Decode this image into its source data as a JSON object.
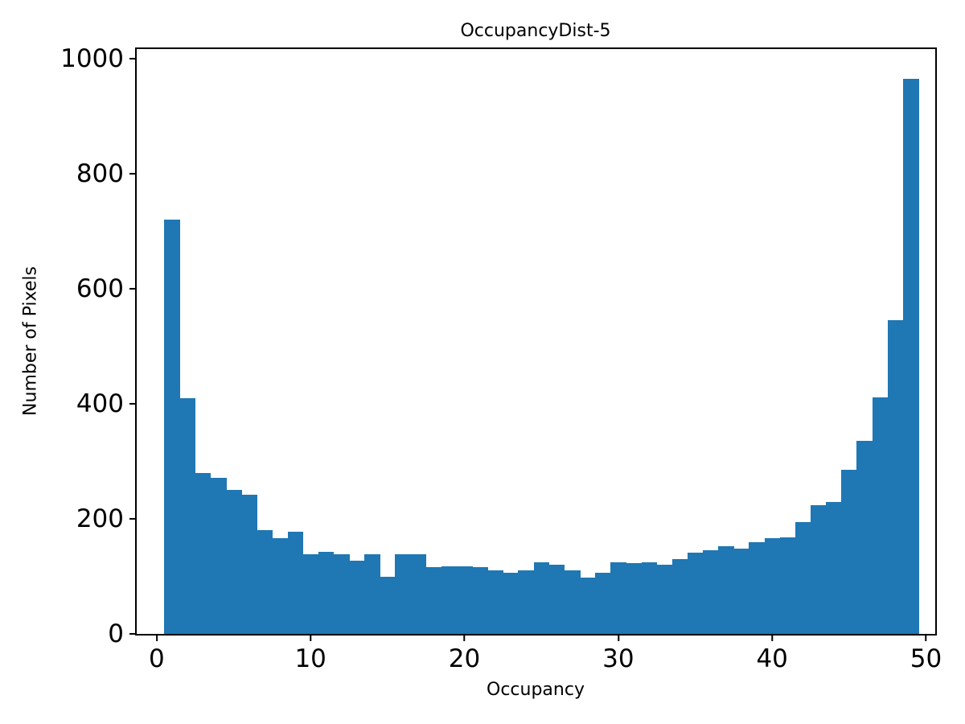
{
  "figure": {
    "background": "#ffffff",
    "bar_color": "#1f77b4",
    "axis_color": "#000000"
  },
  "chart_data": {
    "type": "bar",
    "subtype": "histogram",
    "title": "OccupancyDist-5",
    "xlabel": "Occupancy",
    "ylabel": "Number of Pixels",
    "xlim": [
      -1.3,
      50.6
    ],
    "ylim": [
      0,
      1017
    ],
    "xticks": [
      0,
      10,
      20,
      30,
      40,
      50
    ],
    "yticks": [
      0,
      200,
      400,
      600,
      800,
      1000
    ],
    "grid": false,
    "legend": false,
    "bin_start": 0.5,
    "bin_width": 1,
    "bin_centers": [
      1,
      2,
      3,
      4,
      5,
      6,
      7,
      8,
      9,
      10,
      11,
      12,
      13,
      14,
      15,
      16,
      17,
      18,
      19,
      20,
      21,
      22,
      23,
      24,
      25,
      26,
      27,
      28,
      29,
      30,
      31,
      32,
      33,
      34,
      35,
      36,
      37,
      38,
      39,
      40,
      41,
      42,
      43,
      44,
      45,
      46,
      47,
      48,
      49
    ],
    "values": [
      720,
      410,
      280,
      272,
      250,
      242,
      180,
      167,
      177,
      139,
      143,
      139,
      128,
      139,
      100,
      138,
      139,
      116,
      118,
      118,
      116,
      111,
      107,
      110,
      125,
      120,
      110,
      98,
      106,
      125,
      123,
      125,
      121,
      130,
      142,
      145,
      153,
      148,
      159,
      167,
      168,
      195,
      224,
      230,
      285,
      336,
      411,
      546,
      965
    ]
  }
}
